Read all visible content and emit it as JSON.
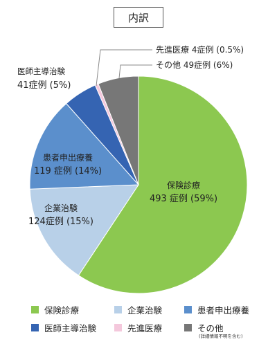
{
  "chart_data": {
    "type": "pie",
    "title": "内訳",
    "start_angle_deg": 0,
    "direction": "clockwise",
    "slices": [
      {
        "name": "保険診療",
        "count_label": "493 症例",
        "pct_label": "(59%)",
        "value": 59,
        "color": "#8cc850"
      },
      {
        "name": "企業治験",
        "count_label": "124症例",
        "pct_label": "(15%)",
        "value": 15,
        "color": "#b8d0e8"
      },
      {
        "name": "患者申出療養",
        "count_label": "119 症例",
        "pct_label": "(14%)",
        "value": 14,
        "color": "#5b8fcc"
      },
      {
        "name": "医師主導治験",
        "count_label": "41症例",
        "pct_label": "(5%)",
        "value": 5,
        "color": "#3564b2"
      },
      {
        "name": "先進医療",
        "count_label": "4症例",
        "pct_label": "(0.5%)",
        "value": 0.5,
        "color": "#f4c8dc"
      },
      {
        "name": "その他",
        "count_label": "49症例",
        "pct_label": "(6%)",
        "value": 6,
        "color": "#777777"
      }
    ],
    "legend": {
      "placement": "bottom",
      "note": "(詳細情報不明を含む)"
    }
  }
}
